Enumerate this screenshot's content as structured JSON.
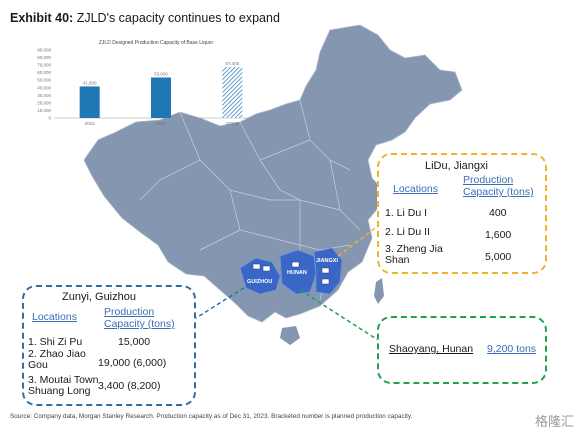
{
  "header": {
    "exhibit": "Exhibit 40:",
    "title": "ZJLD's capacity continues to expand"
  },
  "chart_data": {
    "type": "bar",
    "title": "ZJLD Designed Production Capacity of Base Liquor",
    "categories": [
      "2022",
      "2023",
      "2024E"
    ],
    "values": [
      41800,
      53600,
      67400
    ],
    "value_labels": [
      "41,800",
      "53,600",
      "67,400"
    ],
    "ylim": [
      0,
      90000
    ],
    "yticks": [
      "0",
      "10,000",
      "20,000",
      "30,000",
      "40,000",
      "50,000",
      "60,000",
      "70,000",
      "80,000",
      "90,000"
    ],
    "colors": {
      "bar": "#1f77b4",
      "forecast": "hatched"
    }
  },
  "map": {
    "guizhou": "GUIZHOU",
    "hunan": "HUNAN",
    "jiangxi": "JIANGXI"
  },
  "lidu": {
    "title": "LiDu, Jiangxi",
    "col1": "Locations",
    "col2a": "Production",
    "col2b": "Capacity (tons)",
    "rows": [
      {
        "loc": "1. Li Du I",
        "cap": "400"
      },
      {
        "loc": "2. Li Du II",
        "cap": "1,600"
      },
      {
        "loc": "3. Zheng Jia Shan",
        "cap": "5,000"
      }
    ]
  },
  "zunyi": {
    "title": "Zunyi, Guizhou",
    "col1": "Locations",
    "col2a": "Production",
    "col2b": "Capacity (tons)",
    "rows": [
      {
        "loc": "1. Shi Zi Pu",
        "cap": "15,000"
      },
      {
        "loc": "2. Zhao Jiao Gou",
        "cap": "19,000 (6,000)"
      },
      {
        "loc": "3. Moutai Town Shuang Long",
        "cap": "3,400 (8,200)"
      }
    ]
  },
  "shaoyang": {
    "title": "Shaoyang, Hunan",
    "cap": "9,200 tons"
  },
  "source": "Source: Company data, Morgan Stanley Research. Production capacity as of Dec 31, 2023. Bracketed number is planned production capacity.",
  "watermark": "格隆汇",
  "colors": {
    "map": "#8496b0",
    "province": "#3a67c7",
    "orange": "#f0b429",
    "blue": "#2f6ea6",
    "green": "#22a050"
  }
}
